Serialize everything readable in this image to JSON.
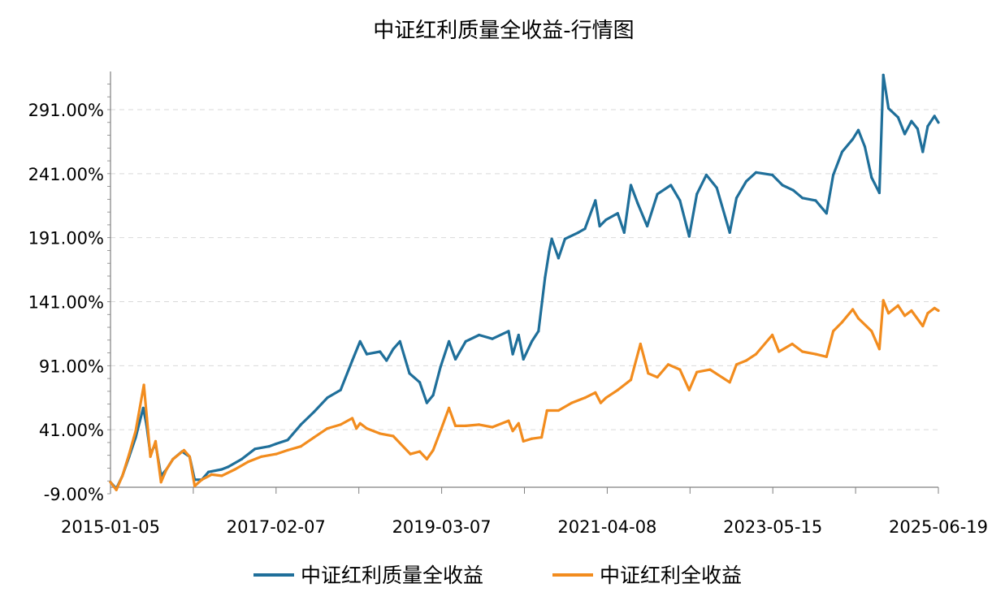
{
  "chart_data": {
    "type": "line",
    "title": "中证红利质量全收益-行情图",
    "xlabel": "",
    "ylabel": "",
    "x_tick_labels": [
      "2015-01-05",
      "2017-02-07",
      "2019-03-07",
      "2021-04-08",
      "2023-05-15",
      "2025-06-19"
    ],
    "y_tick_values": [
      -9,
      41,
      91,
      141,
      191,
      241,
      291
    ],
    "y_tick_labels": [
      "-9.00%",
      "41.00%",
      "91.00%",
      "141.00%",
      "191.00%",
      "241.00%",
      "291.00%"
    ],
    "ylim": [
      -9,
      320
    ],
    "xlim": [
      "2015-01-05",
      "2025-06-19"
    ],
    "grid": "horizontal dashed",
    "legend_position": "bottom",
    "series": [
      {
        "name": "中证红利质量全收益",
        "color": "#1f6f9a",
        "points": [
          [
            "2015-01-05",
            0
          ],
          [
            "2015-02-01",
            -5
          ],
          [
            "2015-03-01",
            5
          ],
          [
            "2015-04-01",
            20
          ],
          [
            "2015-05-01",
            35
          ],
          [
            "2015-06-05",
            58
          ],
          [
            "2015-06-20",
            45
          ],
          [
            "2015-07-08",
            22
          ],
          [
            "2015-08-01",
            30
          ],
          [
            "2015-08-26",
            5
          ],
          [
            "2015-09-20",
            10
          ],
          [
            "2015-10-20",
            18
          ],
          [
            "2015-12-01",
            24
          ],
          [
            "2016-01-05",
            20
          ],
          [
            "2016-01-28",
            2
          ],
          [
            "2016-03-01",
            2
          ],
          [
            "2016-04-01",
            8
          ],
          [
            "2016-06-01",
            10
          ],
          [
            "2016-07-01",
            12
          ],
          [
            "2016-09-01",
            18
          ],
          [
            "2016-11-01",
            26
          ],
          [
            "2017-01-05",
            28
          ],
          [
            "2017-02-07",
            30
          ],
          [
            "2017-04-01",
            33
          ],
          [
            "2017-06-01",
            45
          ],
          [
            "2017-08-01",
            55
          ],
          [
            "2017-10-01",
            66
          ],
          [
            "2017-12-01",
            72
          ],
          [
            "2018-01-24",
            95
          ],
          [
            "2018-03-01",
            110
          ],
          [
            "2018-04-01",
            100
          ],
          [
            "2018-06-01",
            102
          ],
          [
            "2018-07-01",
            95
          ],
          [
            "2018-08-01",
            104
          ],
          [
            "2018-09-01",
            110
          ],
          [
            "2018-10-15",
            85
          ],
          [
            "2018-12-01",
            78
          ],
          [
            "2019-01-03",
            62
          ],
          [
            "2019-02-01",
            68
          ],
          [
            "2019-03-07",
            90
          ],
          [
            "2019-04-15",
            110
          ],
          [
            "2019-05-15",
            96
          ],
          [
            "2019-07-01",
            110
          ],
          [
            "2019-09-01",
            115
          ],
          [
            "2019-11-01",
            112
          ],
          [
            "2020-01-15",
            118
          ],
          [
            "2020-02-03",
            100
          ],
          [
            "2020-03-01",
            115
          ],
          [
            "2020-03-23",
            96
          ],
          [
            "2020-05-01",
            110
          ],
          [
            "2020-06-01",
            118
          ],
          [
            "2020-07-01",
            160
          ],
          [
            "2020-07-20",
            180
          ],
          [
            "2020-08-01",
            190
          ],
          [
            "2020-09-01",
            175
          ],
          [
            "2020-10-01",
            190
          ],
          [
            "2020-12-01",
            195
          ],
          [
            "2021-01-01",
            198
          ],
          [
            "2021-02-18",
            220
          ],
          [
            "2021-03-10",
            200
          ],
          [
            "2021-04-08",
            205
          ],
          [
            "2021-06-01",
            210
          ],
          [
            "2021-07-01",
            195
          ],
          [
            "2021-08-01",
            232
          ],
          [
            "2021-09-01",
            218
          ],
          [
            "2021-10-15",
            200
          ],
          [
            "2021-12-01",
            225
          ],
          [
            "2022-02-01",
            232
          ],
          [
            "2022-03-15",
            220
          ],
          [
            "2022-04-27",
            192
          ],
          [
            "2022-06-01",
            225
          ],
          [
            "2022-07-15",
            240
          ],
          [
            "2022-09-01",
            230
          ],
          [
            "2022-10-31",
            195
          ],
          [
            "2022-12-01",
            222
          ],
          [
            "2023-01-15",
            235
          ],
          [
            "2023-03-01",
            242
          ],
          [
            "2023-05-15",
            240
          ],
          [
            "2023-07-01",
            232
          ],
          [
            "2023-08-20",
            228
          ],
          [
            "2023-10-01",
            222
          ],
          [
            "2023-12-01",
            220
          ],
          [
            "2024-01-20",
            210
          ],
          [
            "2024-02-20",
            240
          ],
          [
            "2024-04-01",
            258
          ],
          [
            "2024-05-20",
            268
          ],
          [
            "2024-06-15",
            275
          ],
          [
            "2024-07-15",
            262
          ],
          [
            "2024-08-15",
            238
          ],
          [
            "2024-09-20",
            226
          ],
          [
            "2024-10-08",
            318
          ],
          [
            "2024-11-01",
            292
          ],
          [
            "2024-12-15",
            285
          ],
          [
            "2025-01-15",
            272
          ],
          [
            "2025-02-15",
            282
          ],
          [
            "2025-03-15",
            276
          ],
          [
            "2025-04-08",
            258
          ],
          [
            "2025-05-01",
            278
          ],
          [
            "2025-06-01",
            286
          ],
          [
            "2025-06-19",
            281
          ]
        ]
      },
      {
        "name": "中证红利全收益",
        "color": "#f28c1e",
        "points": [
          [
            "2015-01-05",
            0
          ],
          [
            "2015-02-01",
            -6
          ],
          [
            "2015-03-01",
            5
          ],
          [
            "2015-04-01",
            22
          ],
          [
            "2015-05-01",
            40
          ],
          [
            "2015-06-08",
            76
          ],
          [
            "2015-06-22",
            50
          ],
          [
            "2015-07-08",
            20
          ],
          [
            "2015-08-01",
            32
          ],
          [
            "2015-08-26",
            0
          ],
          [
            "2015-09-20",
            10
          ],
          [
            "2015-10-20",
            18
          ],
          [
            "2015-12-10",
            25
          ],
          [
            "2016-01-05",
            20
          ],
          [
            "2016-01-28",
            -3
          ],
          [
            "2016-03-01",
            2
          ],
          [
            "2016-04-15",
            6
          ],
          [
            "2016-06-01",
            5
          ],
          [
            "2016-08-01",
            10
          ],
          [
            "2016-10-01",
            16
          ],
          [
            "2016-12-01",
            20
          ],
          [
            "2017-02-07",
            22
          ],
          [
            "2017-04-01",
            25
          ],
          [
            "2017-06-01",
            28
          ],
          [
            "2017-08-01",
            35
          ],
          [
            "2017-10-01",
            42
          ],
          [
            "2017-12-01",
            45
          ],
          [
            "2018-01-24",
            50
          ],
          [
            "2018-02-12",
            42
          ],
          [
            "2018-03-01",
            46
          ],
          [
            "2018-04-01",
            42
          ],
          [
            "2018-06-01",
            38
          ],
          [
            "2018-08-01",
            36
          ],
          [
            "2018-10-19",
            22
          ],
          [
            "2018-12-01",
            24
          ],
          [
            "2019-01-03",
            18
          ],
          [
            "2019-02-01",
            25
          ],
          [
            "2019-03-07",
            40
          ],
          [
            "2019-04-15",
            58
          ],
          [
            "2019-05-15",
            44
          ],
          [
            "2019-07-01",
            44
          ],
          [
            "2019-09-01",
            45
          ],
          [
            "2019-11-01",
            43
          ],
          [
            "2020-01-15",
            48
          ],
          [
            "2020-02-03",
            40
          ],
          [
            "2020-03-01",
            46
          ],
          [
            "2020-03-23",
            32
          ],
          [
            "2020-05-01",
            34
          ],
          [
            "2020-06-15",
            35
          ],
          [
            "2020-07-10",
            56
          ],
          [
            "2020-09-01",
            56
          ],
          [
            "2020-11-01",
            62
          ],
          [
            "2021-01-01",
            66
          ],
          [
            "2021-02-18",
            70
          ],
          [
            "2021-03-15",
            62
          ],
          [
            "2021-04-08",
            66
          ],
          [
            "2021-06-01",
            72
          ],
          [
            "2021-08-01",
            80
          ],
          [
            "2021-09-14",
            108
          ],
          [
            "2021-10-20",
            85
          ],
          [
            "2021-12-01",
            82
          ],
          [
            "2022-01-20",
            92
          ],
          [
            "2022-03-15",
            88
          ],
          [
            "2022-04-27",
            72
          ],
          [
            "2022-06-01",
            86
          ],
          [
            "2022-08-01",
            88
          ],
          [
            "2022-10-31",
            78
          ],
          [
            "2022-12-01",
            92
          ],
          [
            "2023-01-15",
            95
          ],
          [
            "2023-03-01",
            100
          ],
          [
            "2023-05-15",
            115
          ],
          [
            "2023-06-15",
            102
          ],
          [
            "2023-08-15",
            108
          ],
          [
            "2023-10-01",
            102
          ],
          [
            "2023-12-01",
            100
          ],
          [
            "2024-01-20",
            98
          ],
          [
            "2024-02-20",
            118
          ],
          [
            "2024-04-01",
            125
          ],
          [
            "2024-05-20",
            135
          ],
          [
            "2024-06-15",
            128
          ],
          [
            "2024-08-15",
            118
          ],
          [
            "2024-09-20",
            104
          ],
          [
            "2024-10-08",
            142
          ],
          [
            "2024-11-01",
            132
          ],
          [
            "2024-12-15",
            138
          ],
          [
            "2025-01-15",
            130
          ],
          [
            "2025-02-15",
            134
          ],
          [
            "2025-04-08",
            122
          ],
          [
            "2025-05-01",
            132
          ],
          [
            "2025-06-01",
            136
          ],
          [
            "2025-06-19",
            134
          ]
        ]
      }
    ]
  }
}
